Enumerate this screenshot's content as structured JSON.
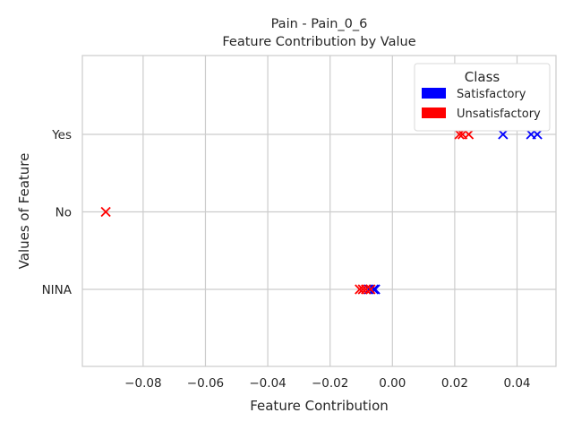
{
  "chart_data": {
    "type": "scatter",
    "title": "Pain - Pain_0_6",
    "subtitle": "Feature Contribution by Value",
    "xlabel": "Feature Contribution",
    "ylabel": "Values of Feature",
    "xlim": [
      -0.0995,
      0.0525
    ],
    "x_ticks": [
      -0.08,
      -0.06,
      -0.04,
      -0.02,
      0.0,
      0.02,
      0.04
    ],
    "x_tick_labels": [
      "−0.08",
      "−0.06",
      "−0.04",
      "−0.02",
      "0.00",
      "0.02",
      "0.04"
    ],
    "categories": [
      "NINA",
      "No",
      "Yes"
    ],
    "grid": true,
    "legend": {
      "title": "Class",
      "placement": "top-right",
      "entries": [
        {
          "label": "Satisfactory",
          "color": "#0000ff"
        },
        {
          "label": "Unsatisfactory",
          "color": "#ff0000"
        }
      ]
    },
    "series": [
      {
        "name": "Satisfactory",
        "color": "#0000ff",
        "marker": "x",
        "points": [
          {
            "category": "Yes",
            "x": 0.0355
          },
          {
            "category": "Yes",
            "x": 0.0445
          },
          {
            "category": "Yes",
            "x": 0.0465
          },
          {
            "category": "NINA",
            "x": -0.0075
          },
          {
            "category": "NINA",
            "x": -0.006
          },
          {
            "category": "NINA",
            "x": -0.0055
          }
        ]
      },
      {
        "name": "Unsatisfactory",
        "color": "#ff0000",
        "marker": "x",
        "points": [
          {
            "category": "Yes",
            "x": 0.0215
          },
          {
            "category": "Yes",
            "x": 0.0225
          },
          {
            "category": "Yes",
            "x": 0.0245
          },
          {
            "category": "No",
            "x": -0.092
          },
          {
            "category": "NINA",
            "x": -0.0105
          },
          {
            "category": "NINA",
            "x": -0.0095
          },
          {
            "category": "NINA",
            "x": -0.0085
          },
          {
            "category": "NINA",
            "x": -0.007
          }
        ]
      }
    ]
  }
}
